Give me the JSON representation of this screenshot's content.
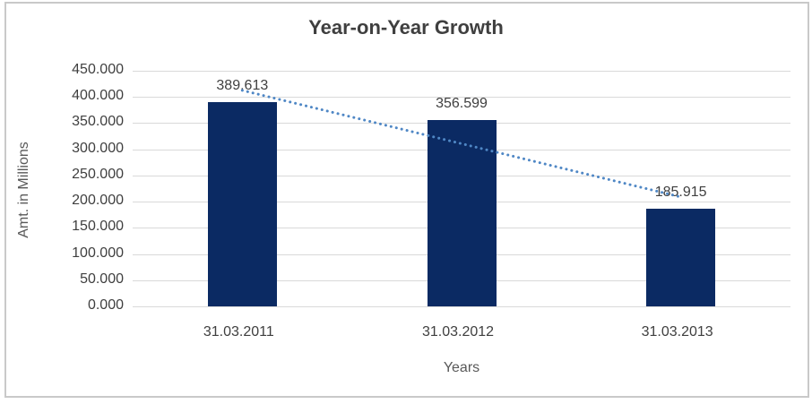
{
  "window": {
    "background": "#ffffff",
    "frame_border_color": "#c9c9c9"
  },
  "chart_data": {
    "type": "bar",
    "title": "Year-on-Year Growth",
    "categories": [
      "31.03.2011",
      "31.03.2012",
      "31.03.2013"
    ],
    "values": [
      389.613,
      356.599,
      185.915
    ],
    "data_labels": [
      "389.613",
      "356.599",
      "185.915"
    ],
    "xlabel": "Years",
    "ylabel": "Amt. in Millions",
    "ylim": [
      0,
      450
    ],
    "ytick_step": 50,
    "ytick_labels": [
      "450.000",
      "400.000",
      "350.000",
      "300.000",
      "250.000",
      "200.000",
      "150.000",
      "100.000",
      "50.000",
      "0.000"
    ],
    "grid": true,
    "legend": "none",
    "bar_color": "#0b2a63",
    "title_color": "#3f3f3f",
    "tick_label_color": "#3f3f3f",
    "axis_title_color": "#595959",
    "gridline_color": "#d9d9d9",
    "trendline": {
      "type": "linear",
      "style": "dotted",
      "color": "#4f87c5",
      "fit_values": [
        412.56,
        310.71,
        208.86
      ]
    }
  }
}
